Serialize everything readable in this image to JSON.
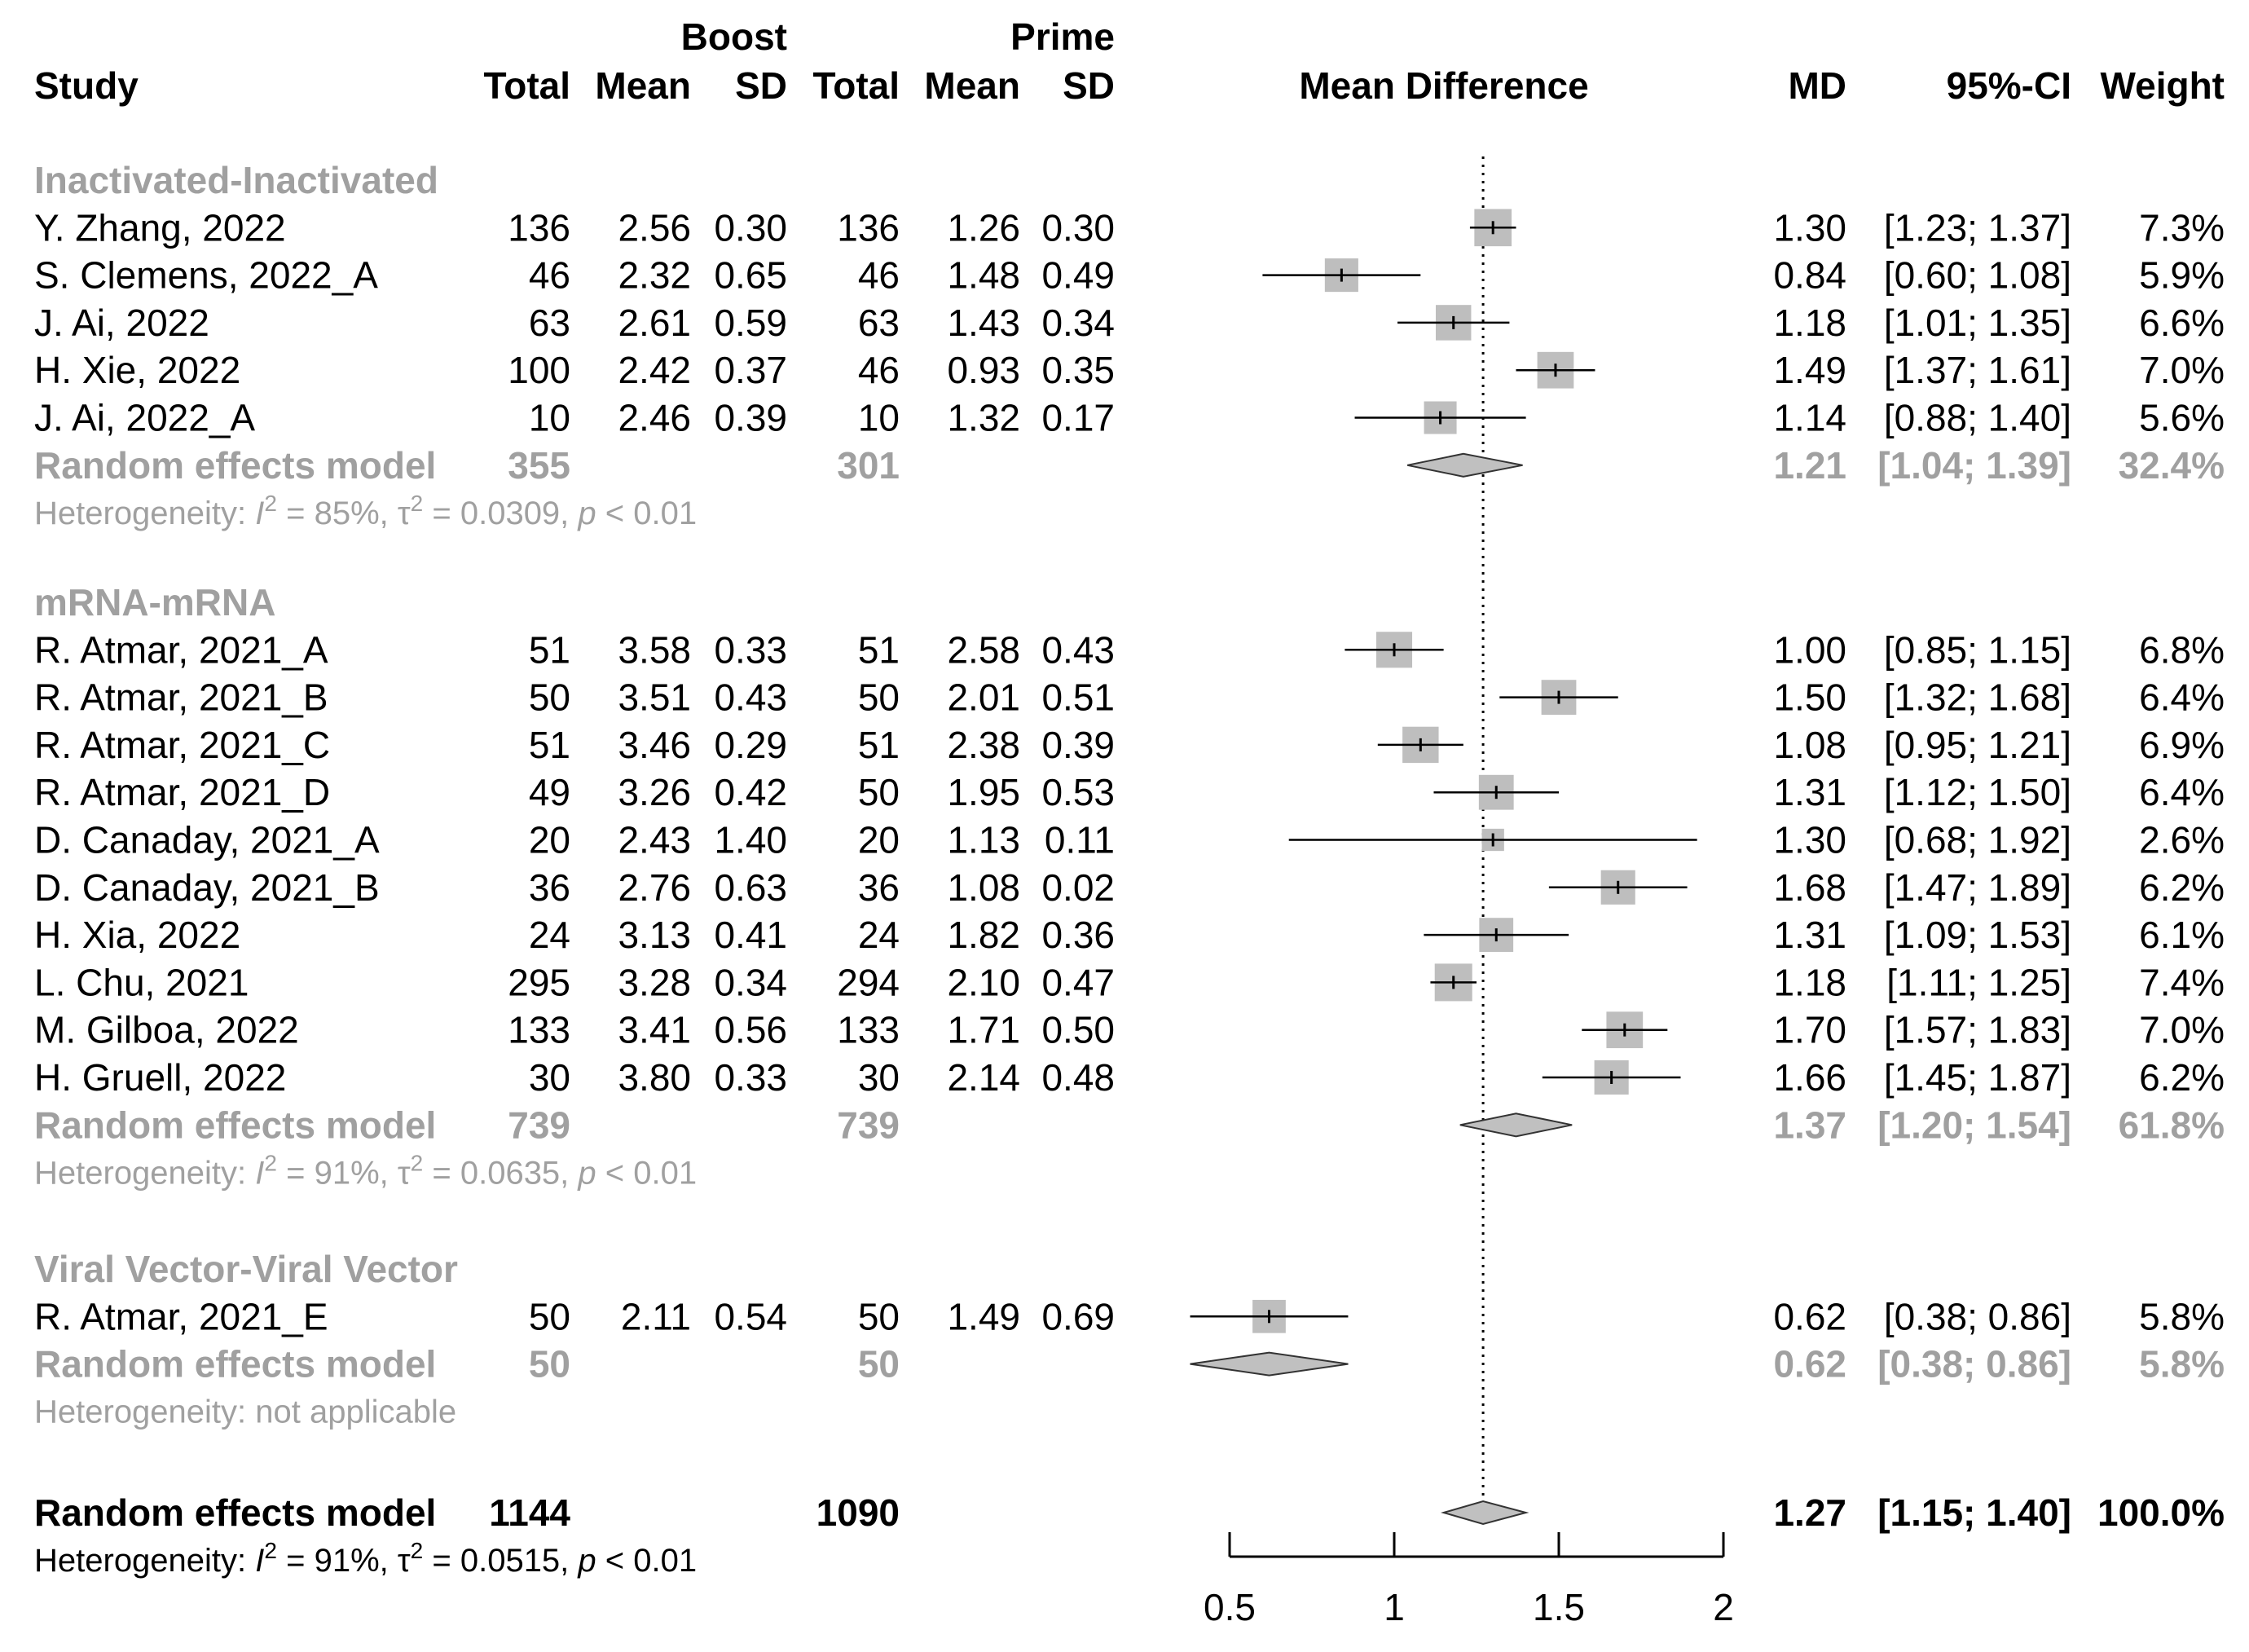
{
  "chart_data": {
    "type": "forest",
    "title": "",
    "headers": {
      "boost": "Boost",
      "prime": "Prime",
      "study": "Study",
      "total": "Total",
      "mean": "Mean",
      "sd": "SD",
      "mean_difference": "Mean Difference",
      "md": "MD",
      "ci": "95%-CI",
      "weight": "Weight"
    },
    "x_axis": {
      "min": 0.5,
      "max": 2,
      "ticks": [
        0.5,
        1,
        1.5,
        2
      ],
      "tick_labels": [
        "0.5",
        "1",
        "1.5",
        "2"
      ],
      "reference_line": 1.27
    },
    "groups": [
      {
        "name": "Inactivated-Inactivated",
        "studies": [
          {
            "study": "Y. Zhang, 2022",
            "b_total": "136",
            "b_mean": "2.56",
            "b_sd": "0.30",
            "p_total": "136",
            "p_mean": "1.26",
            "p_sd": "0.30",
            "md": 1.3,
            "lo": 1.23,
            "hi": 1.37,
            "md_text": "1.30",
            "ci_text": "[1.23; 1.37]",
            "weight": 7.3,
            "weight_text": "7.3%"
          },
          {
            "study": "S. Clemens, 2022_A",
            "b_total": "46",
            "b_mean": "2.32",
            "b_sd": "0.65",
            "p_total": "46",
            "p_mean": "1.48",
            "p_sd": "0.49",
            "md": 0.84,
            "lo": 0.6,
            "hi": 1.08,
            "md_text": "0.84",
            "ci_text": "[0.60; 1.08]",
            "weight": 5.9,
            "weight_text": "5.9%"
          },
          {
            "study": "J. Ai, 2022",
            "b_total": "63",
            "b_mean": "2.61",
            "b_sd": "0.59",
            "p_total": "63",
            "p_mean": "1.43",
            "p_sd": "0.34",
            "md": 1.18,
            "lo": 1.01,
            "hi": 1.35,
            "md_text": "1.18",
            "ci_text": "[1.01; 1.35]",
            "weight": 6.6,
            "weight_text": "6.6%"
          },
          {
            "study": "H. Xie, 2022",
            "b_total": "100",
            "b_mean": "2.42",
            "b_sd": "0.37",
            "p_total": "46",
            "p_mean": "0.93",
            "p_sd": "0.35",
            "md": 1.49,
            "lo": 1.37,
            "hi": 1.61,
            "md_text": "1.49",
            "ci_text": "[1.37; 1.61]",
            "weight": 7.0,
            "weight_text": "7.0%"
          },
          {
            "study": "J. Ai, 2022_A",
            "b_total": "10",
            "b_mean": "2.46",
            "b_sd": "0.39",
            "p_total": "10",
            "p_mean": "1.32",
            "p_sd": "0.17",
            "md": 1.14,
            "lo": 0.88,
            "hi": 1.4,
            "md_text": "1.14",
            "ci_text": "[0.88; 1.40]",
            "weight": 5.6,
            "weight_text": "5.6%"
          }
        ],
        "summary": {
          "label": "Random effects model",
          "b_total": "355",
          "p_total": "301",
          "md": 1.21,
          "lo": 1.04,
          "hi": 1.39,
          "md_text": "1.21",
          "ci_text": "[1.04; 1.39]",
          "weight_text": "32.4%"
        },
        "heterogeneity": {
          "prefix": "Heterogeneity: ",
          "i2": "I",
          "i2_value": " = 85%, ",
          "tau": "τ",
          "tau_value": " = 0.0309, ",
          "p": "p",
          "p_value": " < 0.01"
        }
      },
      {
        "name": "mRNA-mRNA",
        "studies": [
          {
            "study": "R. Atmar, 2021_A",
            "b_total": "51",
            "b_mean": "3.58",
            "b_sd": "0.33",
            "p_total": "51",
            "p_mean": "2.58",
            "p_sd": "0.43",
            "md": 1.0,
            "lo": 0.85,
            "hi": 1.15,
            "md_text": "1.00",
            "ci_text": "[0.85; 1.15]",
            "weight": 6.8,
            "weight_text": "6.8%"
          },
          {
            "study": "R. Atmar, 2021_B",
            "b_total": "50",
            "b_mean": "3.51",
            "b_sd": "0.43",
            "p_total": "50",
            "p_mean": "2.01",
            "p_sd": "0.51",
            "md": 1.5,
            "lo": 1.32,
            "hi": 1.68,
            "md_text": "1.50",
            "ci_text": "[1.32; 1.68]",
            "weight": 6.4,
            "weight_text": "6.4%"
          },
          {
            "study": "R. Atmar, 2021_C",
            "b_total": "51",
            "b_mean": "3.46",
            "b_sd": "0.29",
            "p_total": "51",
            "p_mean": "2.38",
            "p_sd": "0.39",
            "md": 1.08,
            "lo": 0.95,
            "hi": 1.21,
            "md_text": "1.08",
            "ci_text": "[0.95; 1.21]",
            "weight": 6.9,
            "weight_text": "6.9%"
          },
          {
            "study": "R. Atmar, 2021_D",
            "b_total": "49",
            "b_mean": "3.26",
            "b_sd": "0.42",
            "p_total": "50",
            "p_mean": "1.95",
            "p_sd": "0.53",
            "md": 1.31,
            "lo": 1.12,
            "hi": 1.5,
            "md_text": "1.31",
            "ci_text": "[1.12; 1.50]",
            "weight": 6.4,
            "weight_text": "6.4%"
          },
          {
            "study": "D. Canaday, 2021_A",
            "b_total": "20",
            "b_mean": "2.43",
            "b_sd": "1.40",
            "p_total": "20",
            "p_mean": "1.13",
            "p_sd": "0.11",
            "md": 1.3,
            "lo": 0.68,
            "hi": 1.92,
            "md_text": "1.30",
            "ci_text": "[0.68; 1.92]",
            "weight": 2.6,
            "weight_text": "2.6%"
          },
          {
            "study": "D. Canaday, 2021_B",
            "b_total": "36",
            "b_mean": "2.76",
            "b_sd": "0.63",
            "p_total": "36",
            "p_mean": "1.08",
            "p_sd": "0.02",
            "md": 1.68,
            "lo": 1.47,
            "hi": 1.89,
            "md_text": "1.68",
            "ci_text": "[1.47; 1.89]",
            "weight": 6.2,
            "weight_text": "6.2%"
          },
          {
            "study": "H. Xia, 2022",
            "b_total": "24",
            "b_mean": "3.13",
            "b_sd": "0.41",
            "p_total": "24",
            "p_mean": "1.82",
            "p_sd": "0.36",
            "md": 1.31,
            "lo": 1.09,
            "hi": 1.53,
            "md_text": "1.31",
            "ci_text": "[1.09; 1.53]",
            "weight": 6.1,
            "weight_text": "6.1%"
          },
          {
            "study": "L. Chu, 2021",
            "b_total": "295",
            "b_mean": "3.28",
            "b_sd": "0.34",
            "p_total": "294",
            "p_mean": "2.10",
            "p_sd": "0.47",
            "md": 1.18,
            "lo": 1.11,
            "hi": 1.25,
            "md_text": "1.18",
            "ci_text": "[1.11; 1.25]",
            "weight": 7.4,
            "weight_text": "7.4%"
          },
          {
            "study": "M. Gilboa, 2022",
            "b_total": "133",
            "b_mean": "3.41",
            "b_sd": "0.56",
            "p_total": "133",
            "p_mean": "1.71",
            "p_sd": "0.50",
            "md": 1.7,
            "lo": 1.57,
            "hi": 1.83,
            "md_text": "1.70",
            "ci_text": "[1.57; 1.83]",
            "weight": 7.0,
            "weight_text": "7.0%"
          },
          {
            "study": "H. Gruell, 2022",
            "b_total": "30",
            "b_mean": "3.80",
            "b_sd": "0.33",
            "p_total": "30",
            "p_mean": "2.14",
            "p_sd": "0.48",
            "md": 1.66,
            "lo": 1.45,
            "hi": 1.87,
            "md_text": "1.66",
            "ci_text": "[1.45; 1.87]",
            "weight": 6.2,
            "weight_text": "6.2%"
          }
        ],
        "summary": {
          "label": "Random effects model",
          "b_total": "739",
          "p_total": "739",
          "md": 1.37,
          "lo": 1.2,
          "hi": 1.54,
          "md_text": "1.37",
          "ci_text": "[1.20; 1.54]",
          "weight_text": "61.8%"
        },
        "heterogeneity": {
          "prefix": "Heterogeneity: ",
          "i2": "I",
          "i2_value": " = 91%, ",
          "tau": "τ",
          "tau_value": " = 0.0635, ",
          "p": "p",
          "p_value": " < 0.01"
        }
      },
      {
        "name": "Viral Vector-Viral Vector",
        "studies": [
          {
            "study": "R. Atmar, 2021_E",
            "b_total": "50",
            "b_mean": "2.11",
            "b_sd": "0.54",
            "p_total": "50",
            "p_mean": "1.49",
            "p_sd": "0.69",
            "md": 0.62,
            "lo": 0.38,
            "hi": 0.86,
            "md_text": "0.62",
            "ci_text": "[0.38; 0.86]",
            "weight": 5.8,
            "weight_text": "5.8%"
          }
        ],
        "summary": {
          "label": "Random effects model",
          "b_total": "50",
          "p_total": "50",
          "md": 0.62,
          "lo": 0.38,
          "hi": 0.86,
          "md_text": "0.62",
          "ci_text": "[0.38; 0.86]",
          "weight_text": "5.8%"
        },
        "heterogeneity": {
          "text": "Heterogeneity: not applicable"
        }
      }
    ],
    "overall": {
      "label": "Random effects model",
      "b_total": "1144",
      "p_total": "1090",
      "md": 1.27,
      "lo": 1.15,
      "hi": 1.4,
      "md_text": "1.27",
      "ci_text": "[1.15; 1.40]",
      "weight_text": "100.0%",
      "heterogeneity": {
        "prefix": "Heterogeneity: ",
        "i2": "I",
        "i2_value": " = 91%, ",
        "tau": "τ",
        "tau_value": " = 0.0515, ",
        "p": "p",
        "p_value": " < 0.01"
      }
    },
    "colors": {
      "text": "#000000",
      "subgroup_text": "#a0a0a0",
      "box_fill": "#bebebe",
      "diamond_fill": "#c0c0c0",
      "line": "#000000"
    }
  }
}
